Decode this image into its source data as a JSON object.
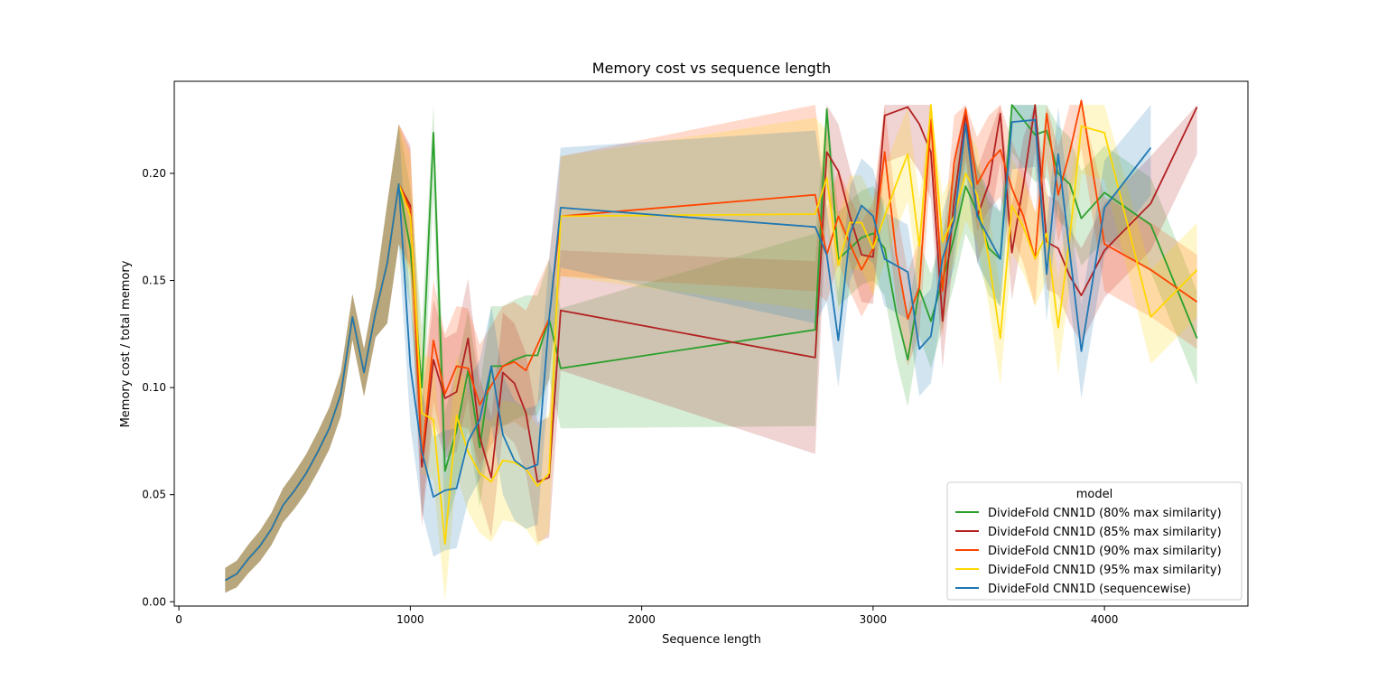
{
  "chart_data": {
    "type": "line",
    "title": "Memory cost vs sequence length",
    "xlabel": "Sequence length",
    "ylabel": "Memory cost / total memory",
    "xlim": [
      -20,
      4620
    ],
    "ylim": [
      -0.002,
      0.243
    ],
    "xticks": [
      {
        "value": 0,
        "label": "0"
      },
      {
        "value": 1000,
        "label": "1000"
      },
      {
        "value": 2000,
        "label": "2000"
      },
      {
        "value": 3000,
        "label": "3000"
      },
      {
        "value": 4000,
        "label": "4000"
      }
    ],
    "yticks": [
      {
        "value": 0.0,
        "label": "0.00"
      },
      {
        "value": 0.05,
        "label": "0.05"
      },
      {
        "value": 0.1,
        "label": "0.10"
      },
      {
        "value": 0.15,
        "label": "0.15"
      },
      {
        "value": 0.2,
        "label": "0.20"
      }
    ],
    "grid": false,
    "legend": {
      "title": "model",
      "placement": "bottom-right"
    },
    "series": [
      {
        "name": "DivideFold CNN1D (80% max similarity)",
        "color": "#2ca02c",
        "x": [
          200,
          250,
          300,
          350,
          400,
          450,
          500,
          550,
          600,
          650,
          700,
          750,
          800,
          850,
          900,
          950,
          1000,
          1050,
          1100,
          1150,
          1200,
          1250,
          1300,
          1350,
          1400,
          1450,
          1500,
          1550,
          1600,
          1650,
          2750,
          2800,
          2850,
          2900,
          2950,
          3000,
          3050,
          3100,
          3150,
          3200,
          3250,
          3300,
          3350,
          3400,
          3450,
          3500,
          3550,
          3600,
          3650,
          3700,
          3750,
          3800,
          3850,
          3900,
          4000,
          4200,
          4400
        ],
        "y": [
          0.01,
          0.013,
          0.02,
          0.026,
          0.034,
          0.045,
          0.052,
          0.06,
          0.07,
          0.081,
          0.097,
          0.133,
          0.107,
          0.135,
          0.158,
          0.195,
          0.165,
          0.1,
          0.219,
          0.061,
          0.08,
          0.108,
          0.072,
          0.11,
          0.11,
          0.113,
          0.115,
          0.115,
          0.132,
          0.109,
          0.127,
          0.23,
          0.16,
          0.165,
          0.17,
          0.172,
          0.165,
          0.135,
          0.113,
          0.146,
          0.131,
          0.15,
          0.17,
          0.194,
          0.182,
          0.165,
          0.16,
          0.232,
          0.225,
          0.218,
          0.22,
          0.2,
          0.195,
          0.179,
          0.191,
          0.176,
          0.123
        ]
      },
      {
        "name": "DivideFold CNN1D (85% max similarity)",
        "color": "#b22222",
        "x": [
          200,
          250,
          300,
          350,
          400,
          450,
          500,
          550,
          600,
          650,
          700,
          750,
          800,
          850,
          900,
          950,
          1000,
          1050,
          1100,
          1150,
          1200,
          1250,
          1300,
          1350,
          1400,
          1450,
          1500,
          1550,
          1600,
          1650,
          2750,
          2800,
          2850,
          2900,
          2950,
          3000,
          3050,
          3100,
          3150,
          3200,
          3250,
          3300,
          3350,
          3400,
          3450,
          3500,
          3550,
          3600,
          3650,
          3700,
          3750,
          3800,
          3850,
          3900,
          4000,
          4200,
          4400
        ],
        "y": [
          0.01,
          0.013,
          0.02,
          0.026,
          0.034,
          0.045,
          0.052,
          0.06,
          0.07,
          0.081,
          0.097,
          0.133,
          0.107,
          0.135,
          0.158,
          0.195,
          0.185,
          0.063,
          0.113,
          0.095,
          0.098,
          0.123,
          0.077,
          0.058,
          0.107,
          0.102,
          0.088,
          0.056,
          0.058,
          0.136,
          0.114,
          0.21,
          0.201,
          0.18,
          0.162,
          0.161,
          0.227,
          0.229,
          0.231,
          0.223,
          0.21,
          0.131,
          0.187,
          0.228,
          0.18,
          0.195,
          0.228,
          0.163,
          0.195,
          0.232,
          0.168,
          0.165,
          0.152,
          0.143,
          0.164,
          0.186,
          0.231
        ]
      },
      {
        "name": "DivideFold CNN1D (90% max similarity)",
        "color": "#ff4500",
        "x": [
          200,
          250,
          300,
          350,
          400,
          450,
          500,
          550,
          600,
          650,
          700,
          750,
          800,
          850,
          900,
          950,
          1000,
          1050,
          1100,
          1150,
          1200,
          1250,
          1300,
          1350,
          1400,
          1450,
          1500,
          1550,
          1600,
          1650,
          2750,
          2800,
          2850,
          2900,
          2950,
          3000,
          3050,
          3100,
          3150,
          3200,
          3250,
          3300,
          3350,
          3400,
          3450,
          3500,
          3550,
          3600,
          3650,
          3700,
          3750,
          3800,
          3850,
          3900,
          4000,
          4200,
          4400
        ],
        "y": [
          0.01,
          0.013,
          0.02,
          0.026,
          0.034,
          0.045,
          0.052,
          0.06,
          0.07,
          0.081,
          0.097,
          0.133,
          0.107,
          0.135,
          0.158,
          0.195,
          0.183,
          0.067,
          0.122,
          0.097,
          0.11,
          0.109,
          0.092,
          0.101,
          0.11,
          0.112,
          0.108,
          0.12,
          0.132,
          0.18,
          0.19,
          0.162,
          0.18,
          0.167,
          0.155,
          0.165,
          0.21,
          0.162,
          0.132,
          0.147,
          0.225,
          0.145,
          0.205,
          0.23,
          0.195,
          0.205,
          0.211,
          0.193,
          0.18,
          0.16,
          0.228,
          0.19,
          0.21,
          0.234,
          0.167,
          0.155,
          0.14
        ]
      },
      {
        "name": "DivideFold CNN1D (95% max similarity)",
        "color": "#ffd700",
        "x": [
          200,
          250,
          300,
          350,
          400,
          450,
          500,
          550,
          600,
          650,
          700,
          750,
          800,
          850,
          900,
          950,
          1000,
          1050,
          1100,
          1150,
          1200,
          1250,
          1300,
          1350,
          1400,
          1450,
          1500,
          1550,
          1600,
          1650,
          2750,
          2800,
          2850,
          2900,
          2950,
          3000,
          3050,
          3100,
          3150,
          3200,
          3250,
          3300,
          3350,
          3400,
          3450,
          3500,
          3550,
          3600,
          3650,
          3700,
          3750,
          3800,
          3850,
          3900,
          4000,
          4200,
          4400
        ],
        "y": [
          0.01,
          0.013,
          0.02,
          0.026,
          0.034,
          0.045,
          0.052,
          0.06,
          0.07,
          0.081,
          0.097,
          0.133,
          0.107,
          0.135,
          0.158,
          0.195,
          0.18,
          0.088,
          0.085,
          0.027,
          0.087,
          0.07,
          0.06,
          0.056,
          0.066,
          0.065,
          0.062,
          0.054,
          0.06,
          0.18,
          0.181,
          0.198,
          0.157,
          0.177,
          0.177,
          0.165,
          0.18,
          0.195,
          0.209,
          0.166,
          0.232,
          0.168,
          0.18,
          0.2,
          0.19,
          0.16,
          0.123,
          0.185,
          0.175,
          0.16,
          0.172,
          0.128,
          0.17,
          0.222,
          0.219,
          0.133,
          0.155
        ]
      },
      {
        "name": "DivideFold CNN1D (sequencewise)",
        "color": "#1f77b4",
        "x": [
          200,
          250,
          300,
          350,
          400,
          450,
          500,
          550,
          600,
          650,
          700,
          750,
          800,
          850,
          900,
          950,
          1000,
          1050,
          1100,
          1150,
          1200,
          1250,
          1300,
          1350,
          1400,
          1450,
          1500,
          1550,
          1600,
          1650,
          2750,
          2800,
          2850,
          2900,
          2950,
          3000,
          3050,
          3150,
          3200,
          3250,
          3300,
          3350,
          3400,
          3450,
          3550,
          3600,
          3700,
          3750,
          3800,
          3900,
          4000,
          4200
        ],
        "y": [
          0.01,
          0.013,
          0.02,
          0.026,
          0.034,
          0.045,
          0.052,
          0.06,
          0.07,
          0.081,
          0.097,
          0.133,
          0.107,
          0.135,
          0.158,
          0.195,
          0.11,
          0.07,
          0.049,
          0.052,
          0.053,
          0.075,
          0.085,
          0.11,
          0.078,
          0.066,
          0.062,
          0.064,
          0.132,
          0.184,
          0.175,
          0.162,
          0.122,
          0.172,
          0.185,
          0.18,
          0.16,
          0.154,
          0.118,
          0.124,
          0.16,
          0.178,
          0.223,
          0.18,
          0.16,
          0.224,
          0.225,
          0.153,
          0.209,
          0.117,
          0.184,
          0.212
        ]
      }
    ]
  }
}
